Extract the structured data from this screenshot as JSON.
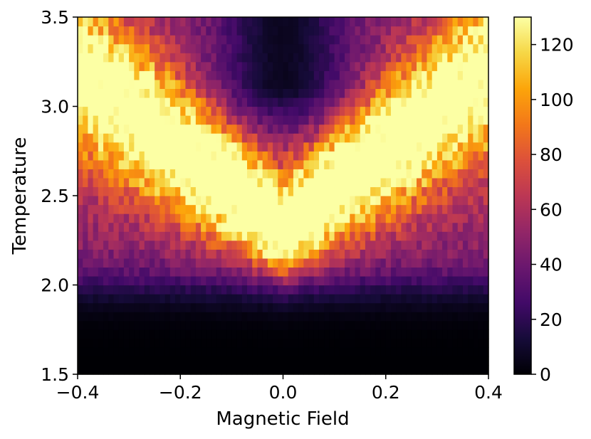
{
  "chart_data": {
    "type": "heatmap",
    "title": "",
    "xlabel": "Magnetic Field",
    "ylabel": "Temperature",
    "xlim": [
      -0.4,
      0.4
    ],
    "ylim": [
      1.5,
      3.5
    ],
    "x_ticks": [
      "−0.4",
      "−0.2",
      "0.0",
      "0.2",
      "0.4"
    ],
    "y_ticks": [
      "1.5",
      "2.0",
      "2.5",
      "3.0",
      "3.5"
    ],
    "colormap": "inferno",
    "colorbar": {
      "range": [
        0,
        130
      ],
      "ticks": [
        "0",
        "20",
        "40",
        "60",
        "80",
        "100",
        "120"
      ]
    },
    "grid": false,
    "x_columns": 80,
    "y_rows": 40,
    "description": "Intensity peaks (~125) near field 0.0, temperature ~2.3, forming a V-shaped high region that widens toward higher temperatures; low values (<20) below temperature 1.9 and a darker notch near field 0.0 above temperature 2.9."
  }
}
